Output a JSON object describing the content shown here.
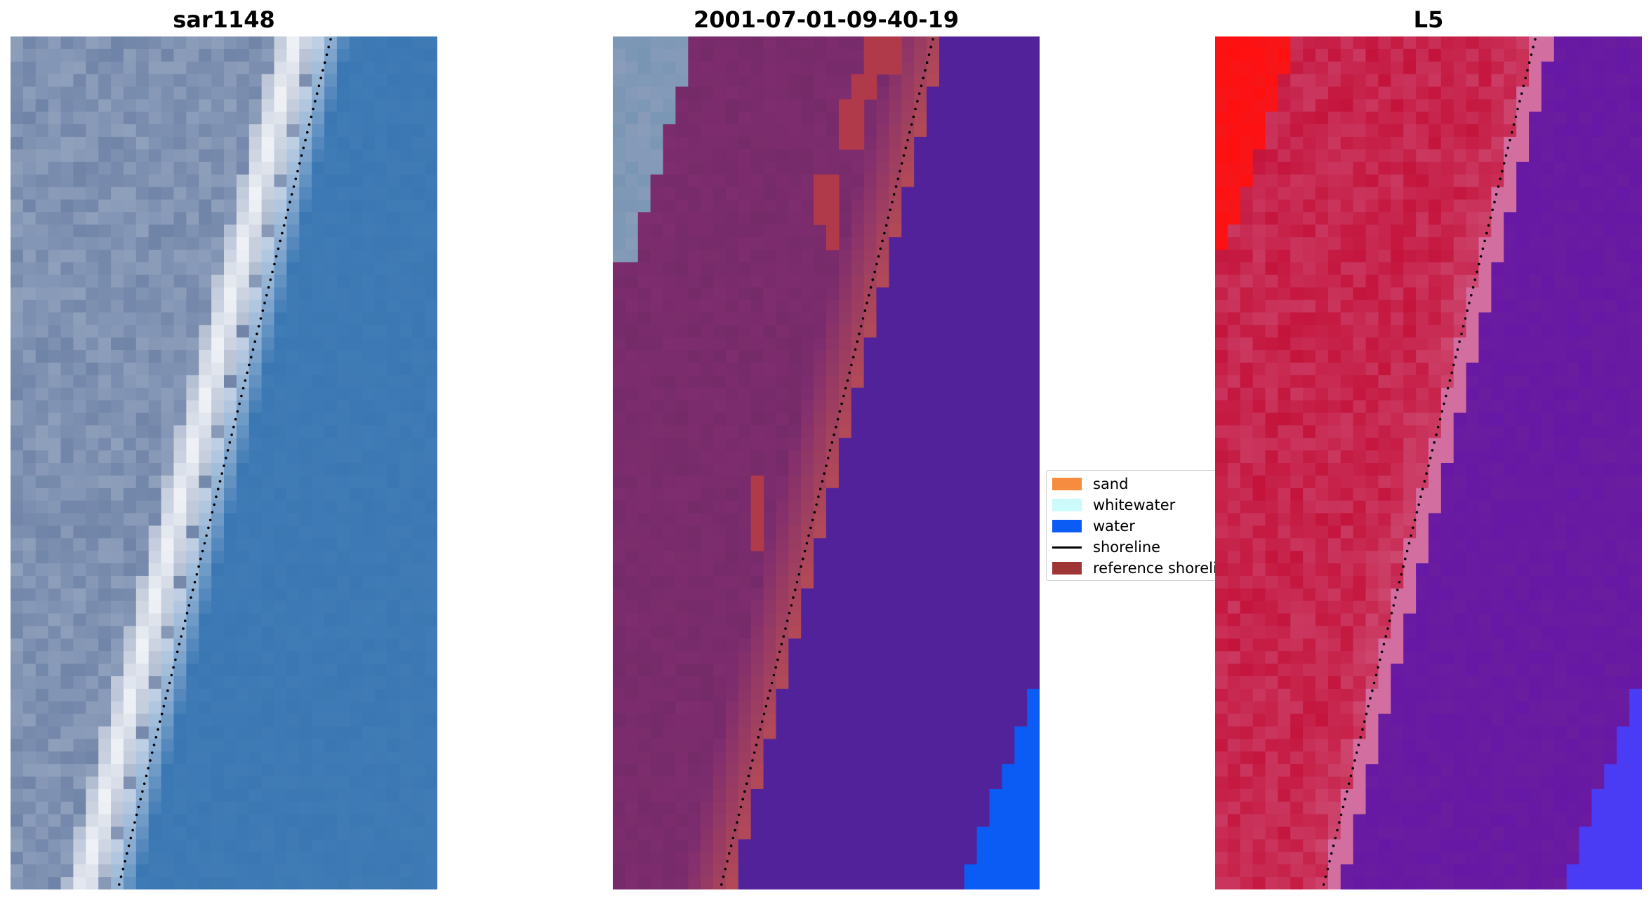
{
  "panels": [
    {
      "title": "sar1148",
      "kind": "rgb"
    },
    {
      "title": "2001-07-01-09-40-19",
      "kind": "classified"
    },
    {
      "title": "L5",
      "kind": "index"
    }
  ],
  "legend": {
    "items": [
      {
        "label": "sand",
        "color": "#f58c3f",
        "type": "patch"
      },
      {
        "label": "whitewater",
        "color": "#ccfbfb",
        "type": "patch"
      },
      {
        "label": "water",
        "color": "#0a5cf5",
        "type": "patch"
      },
      {
        "label": "shoreline",
        "color": "#000000",
        "type": "line"
      },
      {
        "label": "reference shoreli",
        "color": "#a03535",
        "type": "patch"
      }
    ]
  },
  "colors": {
    "water_rgb": "#3b78b3",
    "land_rgb": "#8fa0bc",
    "surf_rgb": "#f2f4f8",
    "classified_water": "#52229a",
    "classified_land": "#7e2d6e",
    "classified_sand_overlay": "#b34a58",
    "water_class": "#0a5cf5",
    "index_land": "#c4143c",
    "index_water": "#6a1d9f",
    "index_high": "#ff1010",
    "index_low": "#4a3cf5"
  }
}
